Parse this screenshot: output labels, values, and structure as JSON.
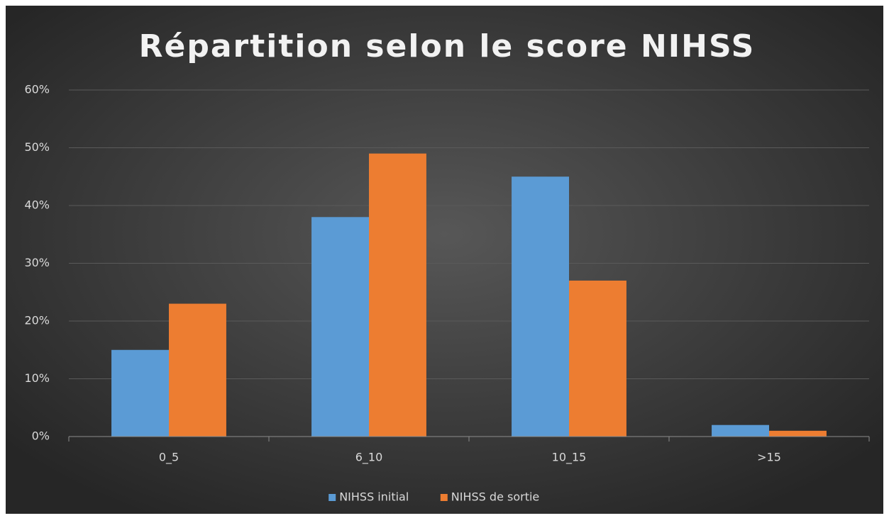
{
  "chart_data": {
    "type": "bar",
    "title": "Répartition selon le score NIHSS",
    "categories": [
      "0_5",
      "6_10",
      "10_15",
      ">15"
    ],
    "series": [
      {
        "name": "NIHSS initial",
        "color": "#5b9bd5",
        "values": [
          15,
          38,
          45,
          2
        ]
      },
      {
        "name": "NIHSS de sortie",
        "color": "#ed7d31",
        "values": [
          23,
          49,
          27,
          1
        ]
      }
    ],
    "ylim": [
      0,
      60
    ],
    "yticks": [
      {
        "value": 0,
        "label": "0%"
      },
      {
        "value": 10,
        "label": "10%"
      },
      {
        "value": 20,
        "label": "20%"
      },
      {
        "value": 30,
        "label": "30%"
      },
      {
        "value": 40,
        "label": "40%"
      },
      {
        "value": 50,
        "label": "50%"
      },
      {
        "value": 60,
        "label": "60%"
      }
    ],
    "grid": true,
    "legend": "bottom"
  }
}
